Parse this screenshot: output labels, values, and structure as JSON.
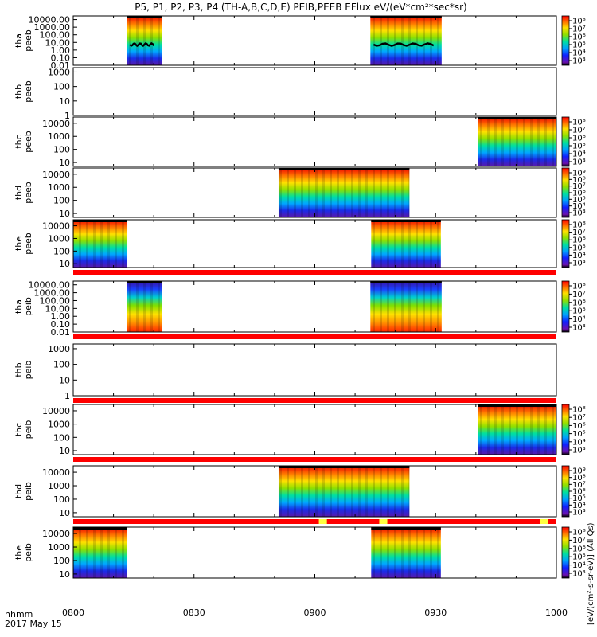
{
  "chart_data": {
    "type": "heatmap",
    "title": "P5, P1, P2, P3, P4 (TH-A,B,C,D,E) PEIB,PEEB EFlux eV/(eV*cm²*sec*sr)",
    "time_label": "hhmm",
    "date_label": "2017 May 15",
    "x_ticks": [
      "0800",
      "0830",
      "0900",
      "0930",
      "1000"
    ],
    "x_range_minutes": [
      0,
      120
    ],
    "y_scale": "log",
    "colorbar_unit": "eV/(cm²-s-sr-eV)",
    "colorbar_unit_garbled": "[eV/(cm²-s-sr-eV)] (All Qs)",
    "panels": [
      {
        "probe": "tha",
        "instrument": "peeb",
        "yticks": [
          "10000.00",
          "1000.00",
          "100.00",
          "10.00",
          "1.00",
          "0.10",
          "0.01"
        ],
        "ylim": [
          0.01,
          30000
        ],
        "cbar_ticks": [
          "10⁸",
          "10⁷",
          "10⁶",
          "10⁵",
          "10⁴",
          "10³"
        ],
        "cbar_range": [
          1000,
          100000000
        ],
        "intervals": [
          [
            13.3,
            22.0
          ],
          [
            73.8,
            91.5
          ]
        ],
        "sc_potential": true,
        "status_bar": false
      },
      {
        "probe": "thb",
        "instrument": "peeb",
        "yticks": [
          "1000",
          "100",
          "10",
          "1"
        ],
        "ylim": [
          1,
          2000
        ],
        "cbar_ticks": [],
        "cbar_range": null,
        "intervals": [],
        "sc_potential": false,
        "status_bar": false
      },
      {
        "probe": "thc",
        "instrument": "peeb",
        "yticks": [
          "10000",
          "1000",
          "100",
          "10"
        ],
        "ylim": [
          5,
          30000
        ],
        "cbar_ticks": [
          "10⁸",
          "10⁷",
          "10⁶",
          "10⁵",
          "10⁴",
          "10³"
        ],
        "cbar_range": [
          1000,
          100000000
        ],
        "intervals": [
          [
            100.5,
            120.0
          ]
        ],
        "sc_potential": false,
        "status_bar": false
      },
      {
        "probe": "thd",
        "instrument": "peeb",
        "yticks": [
          "10000",
          "1000",
          "100",
          "10"
        ],
        "ylim": [
          5,
          30000
        ],
        "cbar_ticks": [
          "10⁹",
          "10⁸",
          "10⁷",
          "10⁶",
          "10⁵",
          "10⁴",
          "10³"
        ],
        "cbar_range": [
          1000,
          1000000000
        ],
        "intervals": [
          [
            51.0,
            83.5
          ]
        ],
        "sc_potential": false,
        "status_bar": false
      },
      {
        "probe": "the",
        "instrument": "peeb",
        "yticks": [
          "10000",
          "1000",
          "100",
          "10"
        ],
        "ylim": [
          5,
          30000
        ],
        "cbar_ticks": [
          "10⁸",
          "10⁷",
          "10⁶",
          "10⁵",
          "10⁴",
          "10³"
        ],
        "cbar_range": [
          1000,
          100000000
        ],
        "intervals": [
          [
            0.0,
            13.3
          ],
          [
            74.0,
            91.3
          ]
        ],
        "sc_potential": false,
        "status_bar": true
      },
      {
        "probe": "tha",
        "instrument": "peib",
        "yticks": [
          "10000.00",
          "1000.00",
          "100.00",
          "10.00",
          "1.00",
          "0.10",
          "0.01"
        ],
        "ylim": [
          0.01,
          30000
        ],
        "cbar_ticks": [
          "10⁸",
          "10⁷",
          "10⁶",
          "10⁵",
          "10⁴",
          "10³"
        ],
        "cbar_range": [
          1000,
          100000000
        ],
        "intervals": [
          [
            13.3,
            22.0
          ],
          [
            73.8,
            91.5
          ]
        ],
        "sc_potential": false,
        "status_bar": true
      },
      {
        "probe": "thb",
        "instrument": "peib",
        "yticks": [
          "1000",
          "100",
          "10",
          "1"
        ],
        "ylim": [
          1,
          2000
        ],
        "cbar_ticks": [],
        "cbar_range": null,
        "intervals": [],
        "sc_potential": false,
        "status_bar": true
      },
      {
        "probe": "thc",
        "instrument": "peib",
        "yticks": [
          "10000",
          "1000",
          "100",
          "10"
        ],
        "ylim": [
          5,
          30000
        ],
        "cbar_ticks": [
          "10⁸",
          "10⁷",
          "10⁶",
          "10⁵",
          "10⁴",
          "10³"
        ],
        "cbar_range": [
          1000,
          100000000
        ],
        "intervals": [
          [
            100.5,
            120.0
          ]
        ],
        "sc_potential": false,
        "status_bar": true
      },
      {
        "probe": "thd",
        "instrument": "peib",
        "yticks": [
          "10000",
          "1000",
          "100",
          "10"
        ],
        "ylim": [
          5,
          30000
        ],
        "cbar_ticks": [
          "10⁹",
          "10⁸",
          "10⁷",
          "10⁶",
          "10⁵",
          "10⁴",
          "10³"
        ],
        "cbar_range": [
          1000,
          1000000000
        ],
        "intervals": [
          [
            51.0,
            83.5
          ]
        ],
        "sc_potential": false,
        "status_bar": true
      },
      {
        "probe": "the",
        "instrument": "peib",
        "yticks": [
          "10000",
          "1000",
          "100",
          "10"
        ],
        "ylim": [
          5,
          30000
        ],
        "cbar_ticks": [
          "10⁸",
          "10⁷",
          "10⁶",
          "10⁵",
          "10⁴",
          "10³"
        ],
        "cbar_range": [
          1000,
          100000000
        ],
        "intervals": [
          [
            0.0,
            13.3
          ],
          [
            74.0,
            91.3
          ]
        ],
        "sc_potential": false,
        "status_bar": false
      }
    ],
    "status_bar_yellow_marks_minutes": [
      [
        61.0,
        63.0
      ],
      [
        76.0,
        78.0
      ],
      [
        116.0,
        118.0
      ]
    ]
  }
}
